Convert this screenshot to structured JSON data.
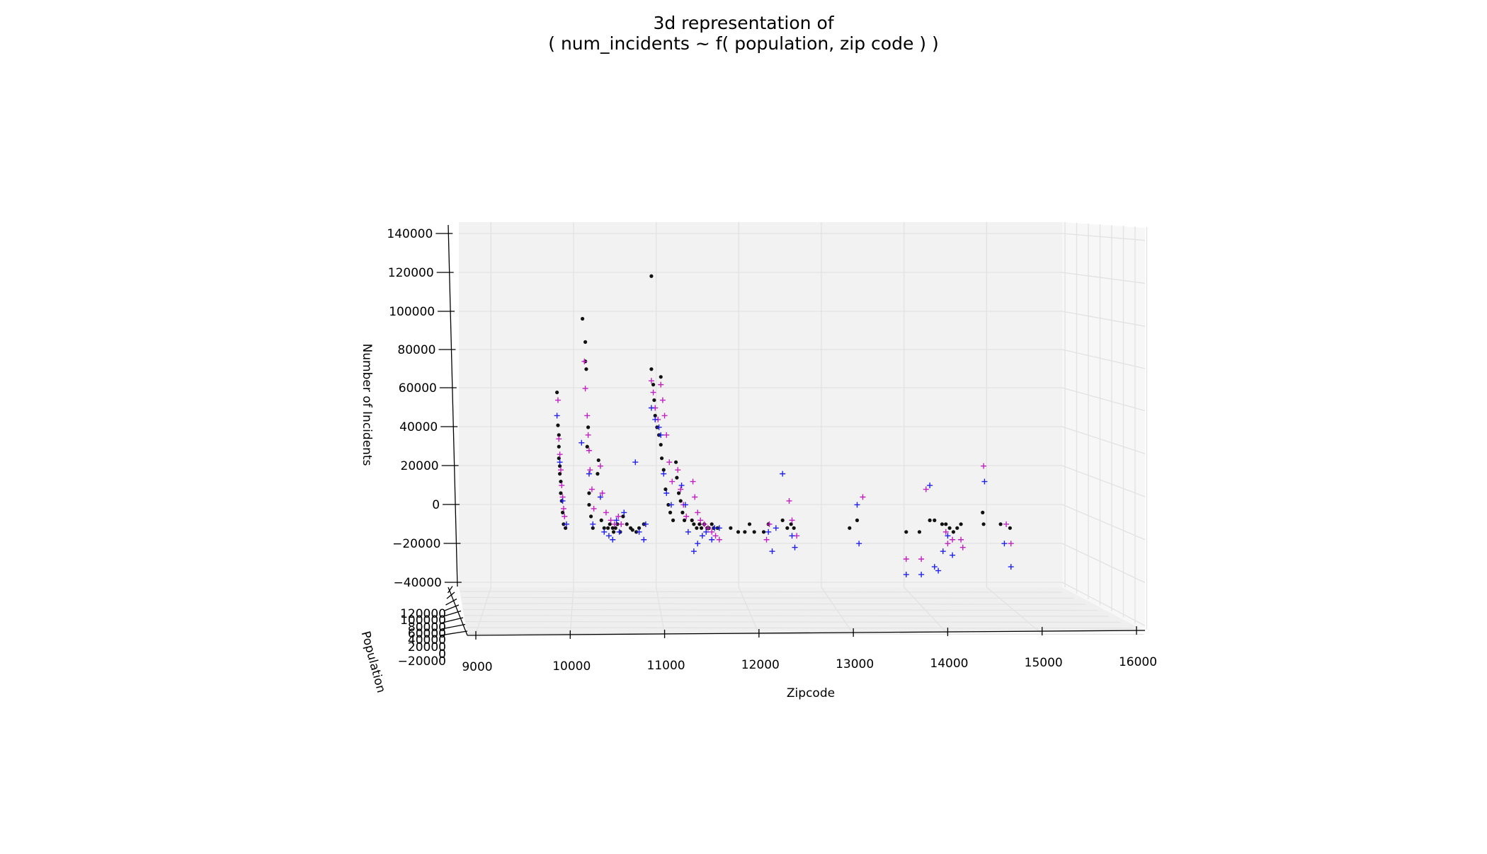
{
  "chart_data": {
    "type": "scatter",
    "projection": "3d",
    "title_line1": "3d representation of",
    "title_line2": "( num_incidents ~ f( population, zip code ) )",
    "xlabel": "Zipcode",
    "ylabel": "Population",
    "zlabel": "Number of Incidents",
    "x_ticks": [
      "9000",
      "10000",
      "11000",
      "12000",
      "13000",
      "14000",
      "15000",
      "16000"
    ],
    "y_ticks": [
      "−20000",
      "0",
      "20000",
      "40000",
      "60000",
      "80000",
      "100000",
      "120000"
    ],
    "z_ticks": [
      "140000",
      "120000",
      "100000",
      "80000",
      "60000",
      "40000",
      "20000",
      "0",
      "−20000",
      "−40000"
    ],
    "xlim": [
      8800,
      16000
    ],
    "zlim": [
      -42000,
      142000
    ],
    "grid": true,
    "colors": {
      "pane": "#f2f2f2",
      "pane_side": "#f7f7f7",
      "grid": "#e2e2e2",
      "axis": "#000000"
    },
    "series": [
      {
        "color": "#111111",
        "marker": "dot",
        "points": [
          [
            9860,
            58000
          ],
          [
            9870,
            41000
          ],
          [
            9880,
            36000
          ],
          [
            9880,
            30000
          ],
          [
            9880,
            24000
          ],
          [
            9890,
            20000
          ],
          [
            9890,
            16000
          ],
          [
            9900,
            12000
          ],
          [
            9900,
            6000
          ],
          [
            9910,
            2000
          ],
          [
            9920,
            -4000
          ],
          [
            9930,
            -10000
          ],
          [
            9950,
            -12000
          ],
          [
            10130,
            96000
          ],
          [
            10160,
            84000
          ],
          [
            10160,
            74000
          ],
          [
            10170,
            70000
          ],
          [
            10190,
            40000
          ],
          [
            10180,
            30000
          ],
          [
            10200,
            6000
          ],
          [
            10200,
            0
          ],
          [
            10220,
            -6000
          ],
          [
            10240,
            -12000
          ],
          [
            10300,
            23000
          ],
          [
            10290,
            16000
          ],
          [
            10330,
            -8000
          ],
          [
            10360,
            -12000
          ],
          [
            10400,
            -12000
          ],
          [
            10420,
            -10000
          ],
          [
            10450,
            -12000
          ],
          [
            10460,
            -14000
          ],
          [
            10480,
            -12000
          ],
          [
            10500,
            -10000
          ],
          [
            10530,
            -14000
          ],
          [
            10560,
            -6000
          ],
          [
            10600,
            -10000
          ],
          [
            10640,
            -12000
          ],
          [
            10660,
            -13000
          ],
          [
            10700,
            -14000
          ],
          [
            10730,
            -12000
          ],
          [
            10780,
            -10000
          ],
          [
            10860,
            118000
          ],
          [
            10860,
            70000
          ],
          [
            10880,
            62000
          ],
          [
            10890,
            54000
          ],
          [
            10900,
            46000
          ],
          [
            10920,
            40000
          ],
          [
            10940,
            36000
          ],
          [
            10960,
            66000
          ],
          [
            10960,
            31000
          ],
          [
            10970,
            24000
          ],
          [
            10990,
            18000
          ],
          [
            11010,
            8000
          ],
          [
            11040,
            0
          ],
          [
            11060,
            -4000
          ],
          [
            11090,
            -8000
          ],
          [
            11120,
            22000
          ],
          [
            11130,
            14000
          ],
          [
            11150,
            6000
          ],
          [
            11170,
            2000
          ],
          [
            11190,
            -4000
          ],
          [
            11210,
            -8000
          ],
          [
            11290,
            -8000
          ],
          [
            11310,
            -10000
          ],
          [
            11340,
            -12000
          ],
          [
            11370,
            -10000
          ],
          [
            11390,
            -12000
          ],
          [
            11420,
            -10000
          ],
          [
            11450,
            -12000
          ],
          [
            11470,
            -12000
          ],
          [
            11500,
            -10000
          ],
          [
            11520,
            -12000
          ],
          [
            11560,
            -12000
          ],
          [
            11700,
            -12000
          ],
          [
            11780,
            -14000
          ],
          [
            11850,
            -14000
          ],
          [
            11900,
            -10000
          ],
          [
            11950,
            -14000
          ],
          [
            12050,
            -14000
          ],
          [
            12100,
            -10000
          ],
          [
            12250,
            -8000
          ],
          [
            12300,
            -12000
          ],
          [
            12340,
            -10000
          ],
          [
            12370,
            -12000
          ],
          [
            12960,
            -12000
          ],
          [
            13040,
            -8000
          ],
          [
            13560,
            -14000
          ],
          [
            13700,
            -14000
          ],
          [
            13810,
            -8000
          ],
          [
            13860,
            -8000
          ],
          [
            13940,
            -10000
          ],
          [
            13980,
            -10000
          ],
          [
            14020,
            -12000
          ],
          [
            14060,
            -14000
          ],
          [
            14100,
            -12000
          ],
          [
            14140,
            -10000
          ],
          [
            14370,
            -4000
          ],
          [
            14380,
            -10000
          ],
          [
            14560,
            -10000
          ],
          [
            14660,
            -12000
          ]
        ]
      },
      {
        "color": "#c020c0",
        "marker": "plus",
        "points": [
          [
            9870,
            54000
          ],
          [
            9880,
            34000
          ],
          [
            9890,
            26000
          ],
          [
            9900,
            18000
          ],
          [
            9910,
            10000
          ],
          [
            9920,
            4000
          ],
          [
            9930,
            -2000
          ],
          [
            9940,
            -6000
          ],
          [
            10150,
            74000
          ],
          [
            10160,
            60000
          ],
          [
            10180,
            46000
          ],
          [
            10190,
            36000
          ],
          [
            10200,
            28000
          ],
          [
            10210,
            18000
          ],
          [
            10230,
            8000
          ],
          [
            10250,
            -2000
          ],
          [
            10320,
            20000
          ],
          [
            10340,
            6000
          ],
          [
            10380,
            -4000
          ],
          [
            10430,
            -8000
          ],
          [
            10470,
            -10000
          ],
          [
            10510,
            -6000
          ],
          [
            10540,
            -10000
          ],
          [
            10860,
            64000
          ],
          [
            10880,
            58000
          ],
          [
            10900,
            50000
          ],
          [
            10930,
            44000
          ],
          [
            10960,
            62000
          ],
          [
            10980,
            54000
          ],
          [
            11000,
            46000
          ],
          [
            11020,
            36000
          ],
          [
            11050,
            22000
          ],
          [
            11080,
            12000
          ],
          [
            11140,
            18000
          ],
          [
            11170,
            8000
          ],
          [
            11200,
            0
          ],
          [
            11230,
            -6000
          ],
          [
            11300,
            12000
          ],
          [
            11320,
            4000
          ],
          [
            11350,
            -4000
          ],
          [
            11380,
            -8000
          ],
          [
            11420,
            -10000
          ],
          [
            11460,
            -12000
          ],
          [
            11500,
            -14000
          ],
          [
            11540,
            -16000
          ],
          [
            11580,
            -18000
          ],
          [
            12080,
            -18000
          ],
          [
            12110,
            -10000
          ],
          [
            12320,
            2000
          ],
          [
            12350,
            -8000
          ],
          [
            12400,
            -16000
          ],
          [
            13100,
            4000
          ],
          [
            13560,
            -28000
          ],
          [
            13720,
            -28000
          ],
          [
            13770,
            8000
          ],
          [
            13980,
            -14000
          ],
          [
            14000,
            -20000
          ],
          [
            14050,
            -18000
          ],
          [
            14140,
            -18000
          ],
          [
            14160,
            -22000
          ],
          [
            14380,
            20000
          ],
          [
            14620,
            -10000
          ],
          [
            14670,
            -20000
          ]
        ]
      },
      {
        "color": "#2020ee",
        "marker": "plus",
        "points": [
          [
            9860,
            46000
          ],
          [
            9890,
            22000
          ],
          [
            9920,
            2000
          ],
          [
            9960,
            -10000
          ],
          [
            10120,
            32000
          ],
          [
            10200,
            16000
          ],
          [
            10240,
            -10000
          ],
          [
            10320,
            4000
          ],
          [
            10360,
            -14000
          ],
          [
            10410,
            -16000
          ],
          [
            10450,
            -18000
          ],
          [
            10490,
            -8000
          ],
          [
            10520,
            -14000
          ],
          [
            10570,
            -4000
          ],
          [
            10690,
            22000
          ],
          [
            10730,
            -14000
          ],
          [
            10780,
            -18000
          ],
          [
            10800,
            -10000
          ],
          [
            10860,
            50000
          ],
          [
            10900,
            44000
          ],
          [
            10940,
            40000
          ],
          [
            10960,
            36000
          ],
          [
            10990,
            16000
          ],
          [
            11020,
            6000
          ],
          [
            11070,
            0
          ],
          [
            11180,
            10000
          ],
          [
            11220,
            0
          ],
          [
            11250,
            -14000
          ],
          [
            11310,
            -24000
          ],
          [
            11350,
            -20000
          ],
          [
            11400,
            -16000
          ],
          [
            11440,
            -14000
          ],
          [
            11500,
            -18000
          ],
          [
            11530,
            -12000
          ],
          [
            11580,
            -12000
          ],
          [
            12100,
            -14000
          ],
          [
            12140,
            -24000
          ],
          [
            12180,
            -12000
          ],
          [
            12250,
            16000
          ],
          [
            12350,
            -16000
          ],
          [
            12380,
            -22000
          ],
          [
            13040,
            0
          ],
          [
            13060,
            -20000
          ],
          [
            13560,
            -36000
          ],
          [
            13720,
            -36000
          ],
          [
            13810,
            10000
          ],
          [
            13860,
            -32000
          ],
          [
            13900,
            -34000
          ],
          [
            13950,
            -24000
          ],
          [
            14000,
            -16000
          ],
          [
            14050,
            -26000
          ],
          [
            14390,
            12000
          ],
          [
            14600,
            -20000
          ],
          [
            14670,
            -32000
          ]
        ]
      }
    ]
  }
}
